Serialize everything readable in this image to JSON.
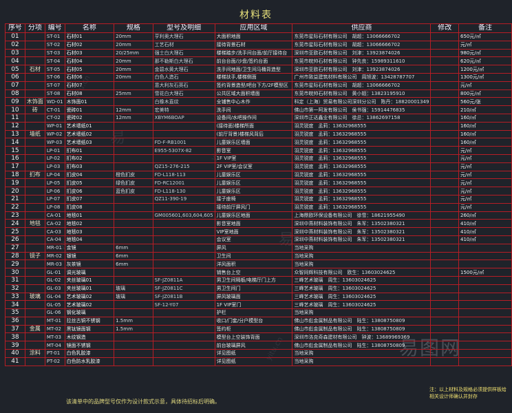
{
  "title": "材料表",
  "headers": [
    "序号",
    "分项",
    "编号",
    "名称",
    "规格",
    "型号及明细",
    "应用区域",
    "供应商",
    "修改",
    "备注"
  ],
  "rows": [
    [
      "01",
      "",
      "ST-01",
      "石材01",
      "20mm",
      "亨利奥大理石",
      "大面积地面",
      "东莞市星际石材有限公司　胡超：13066666702",
      "",
      "650元/㎡"
    ],
    [
      "02",
      "",
      "ST-02",
      "石材02",
      "20mm",
      "工艺石材",
      "接待背景石材",
      "东莞市星际石材有限公司　胡超：13066666702",
      "",
      "元/㎡"
    ],
    [
      "03",
      "",
      "ST-03",
      "石材03",
      "20/25mm",
      "强士白大理石",
      "楼梯踏步/洗手间台面/前厅接待台",
      "深圳市亚欧石材有限公司　刘津：13923874026",
      "",
      "980元/㎡"
    ],
    [
      "04",
      "",
      "ST-04",
      "石材04",
      "20mm",
      "那不勒斯白大理石",
      "前台台面/沙盘/签约台面",
      "东莞市皖帅石材有限公司　钟先良：15989311610",
      "",
      "620元/㎡"
    ],
    [
      "05",
      "石材",
      "ST-05",
      "石材05",
      "20mm",
      "金碧水黄大理石",
      "洗手间地面/卫生间马桶背造型",
      "深圳市亚欧石材有限公司　刘津：13923874026",
      "",
      "1200元/㎡"
    ],
    [
      "06",
      "",
      "ST-06",
      "石材06",
      "20mm",
      "白色人造石",
      "楼梯扶手,楼梯侧面",
      "广州市致益建筑材料有限公司　周旭波：13428787707",
      "",
      "1300元/㎡"
    ],
    [
      "07",
      "",
      "ST-07",
      "石材07",
      "",
      "意大利灰石英石",
      "签约背景造型/吧台下方/2F模型区",
      "东莞市星际石材有限公司　胡超：13066666702",
      "",
      "元/㎡"
    ],
    [
      "08",
      "",
      "ST-08",
      "石材08",
      "25mm",
      "雪花白大理石",
      "公共区域大面积墙面",
      "东莞市皖帅石材有限公司　黄小姐：13823195910",
      "",
      "800元/㎡"
    ],
    [
      "09",
      "木饰面",
      "WD-01",
      "木饰面01",
      "",
      "白橡木直纹",
      "全铺售中心木作",
      "科定（上海）贸易有限公司深圳分公司　陈丹：18820001349",
      "",
      "560元/张"
    ],
    [
      "10",
      "砖",
      "CT-01",
      "瓷砖01",
      "12mm",
      "宏美特",
      "洗手间",
      "佛山市第一阿发有限公司　侯书强：15914476835",
      "",
      "210/㎡"
    ],
    [
      "11",
      "",
      "CT-02",
      "瓷砖02",
      "12mm",
      "XBYM6BOAP",
      "设备间/水吧操作间",
      "深圳市正达鑫业有限公司　徐总：13862697158",
      "",
      "160/㎡"
    ],
    [
      "12",
      "",
      "WP-01",
      "艺术墙纸01",
      "",
      "",
      "(接待面)楼梯所面",
      "羽灵锐度　孟莉：13632968555",
      "",
      "160/㎡"
    ],
    [
      "13",
      "墙纸",
      "WP-02",
      "艺术墙纸02",
      "",
      "",
      "(前厅背景)楼梯风背后",
      "羽灵锐度　孟莉：13632968555",
      "",
      "160/㎡"
    ],
    [
      "14",
      "",
      "WP-03",
      "艺术墙纸03",
      "",
      "FD-F-RB1001",
      "儿童娱乐区墙面",
      "羽灵锐度　孟莉：13632968555",
      "",
      "160/㎡"
    ],
    [
      "15",
      "",
      "LP-01",
      "扪布01",
      "",
      "E955-5307X-82",
      "影音室",
      "羽灵锐度　孟莉：13632968555",
      "",
      "元/㎡"
    ],
    [
      "16",
      "",
      "LP-02",
      "扪布02",
      "",
      "",
      "1F VIP室",
      "羽灵锐度　孟莉：13632968555",
      "",
      "元/㎡"
    ],
    [
      "17",
      "",
      "LP-03",
      "扪布03",
      "",
      "QZ15-276-215",
      "2F VIP室/会议室",
      "羽灵锐度　孟莉：13632968555",
      "",
      "元/㎡"
    ],
    [
      "18",
      "扪布",
      "LP-04",
      "扪皮04",
      "橙色扪皮",
      "FD-L118-113",
      "儿童娱乐区",
      "羽灵锐度　孟莉：13632968555",
      "",
      "元/㎡"
    ],
    [
      "19",
      "",
      "LP-05",
      "扪皮05",
      "绿色扪皮",
      "FD-RC12001",
      "儿童娱乐区",
      "羽灵锐度　孟莉：13632968555",
      "",
      "元/㎡"
    ],
    [
      "20",
      "",
      "LP-06",
      "扪皮06",
      "蓝色扪皮",
      "FD-L118-130",
      "儿童娱乐区",
      "羽灵锐度　孟莉：13632968555",
      "",
      "元/㎡"
    ],
    [
      "21",
      "",
      "LP-07",
      "扪皮07",
      "",
      "QZ11-390-19",
      "接子座椅",
      "羽灵锐度　孟莉：13632968555",
      "",
      "元/㎡"
    ],
    [
      "22",
      "",
      "LP-08",
      "扪皮08",
      "",
      "",
      "接待前厅屏风门",
      "羽灵锐度　孟莉：13632968555",
      "",
      "元/㎡"
    ],
    [
      "23",
      "",
      "CA-01",
      "地毯01",
      "",
      "GM005601,603,604,605",
      "儿童娱乐区地面",
      "上海鼎欧环保设备有限公司　徐雪：18621955490",
      "",
      "260/㎡"
    ],
    [
      "24",
      "地毯",
      "CA-02",
      "地毯02",
      "",
      "",
      "影音室地面",
      "深圳中燕材料装饰有限公司　朱军：13502380321",
      "",
      "410/㎡"
    ],
    [
      "25",
      "",
      "CA-03",
      "地毯03",
      "",
      "",
      "VIP室地面",
      "深圳中燕材料装饰有限公司　朱军：13502380321",
      "",
      "410/㎡"
    ],
    [
      "26",
      "",
      "CA-04",
      "地毯04",
      "",
      "",
      "会议室",
      "深圳中燕材料装饰有限公司　朱军：13502380321",
      "",
      "410/㎡"
    ],
    [
      "27",
      "",
      "MR-01",
      "金镜",
      "6mm",
      "",
      "屏风",
      "当地采购",
      "",
      ""
    ],
    [
      "28",
      "镜子",
      "MR-02",
      "银镜",
      "6mm",
      "",
      "卫生间",
      "当地采购",
      "",
      ""
    ],
    [
      "29",
      "",
      "MR-03",
      "灰茶镜",
      "6mm",
      "",
      "洋风面积",
      "当地采购",
      "",
      ""
    ],
    [
      "30",
      "",
      "GL-01",
      "调光玻璃",
      "",
      "",
      "销售台上空",
      "众智同辉科技有限公司　欧生：13603024625",
      "",
      "1500元/㎡"
    ],
    [
      "31",
      "",
      "GL-02",
      "夹丝玻璃01",
      "",
      "SF-JZ0811A",
      "男卫生间隔板/电梯厅门上方",
      "三峰艺术玻璃　周生：13603024625",
      "",
      ""
    ],
    [
      "32",
      "",
      "GL-03",
      "夹丝玻璃01",
      "玻璃",
      "SF-JZ0811C",
      "男卫生间门",
      "三峰艺术玻璃　周生：13603024625",
      "",
      ""
    ],
    [
      "33",
      "玻璃",
      "GL-04",
      "艺术玻璃02",
      "玻璃",
      "SF-JZ0811B",
      "屏风玻璃面",
      "三峰艺术玻璃　周生：13603024625",
      "",
      ""
    ],
    [
      "34",
      "",
      "GL-05",
      "艺术玻璃02",
      "",
      "SF-12-Y07",
      "1F VIP室门",
      "三峰艺术玻璃　周生：13603024625",
      "",
      ""
    ],
    [
      "35",
      "",
      "GL-06",
      "钢化玻璃",
      "",
      "",
      "护栏",
      "当地采购",
      "",
      ""
    ],
    [
      "36",
      "",
      "MT-01",
      "拉丝古铜不锈钢",
      "1.5mm",
      "",
      "收口/门套/分户模型台",
      "佛山市彪金属制品有限公司　陆生：13808750809",
      "",
      ""
    ],
    [
      "37",
      "金属",
      "MT-02",
      "黑钛镜面钢",
      "1.5mm",
      "",
      "签约柜",
      "佛山市彪金属制品有限公司　陆生：13808750809",
      "",
      ""
    ],
    [
      "38",
      "",
      "MT-03",
      "木纹钢造",
      "",
      "",
      "模型台上空装饰背面",
      "深圳市洛克奇森建材有限公司　钟波：13689969369",
      "",
      ""
    ],
    [
      "39",
      "",
      "MT-04",
      "镜面不锈钢",
      "",
      "",
      "前台玻璃屏风",
      "佛山市彪金属制品有限公司　陆生：13808750809",
      "",
      ""
    ],
    [
      "40",
      "涂料",
      "PT-01",
      "白色乳胶漆",
      "",
      "",
      "详见图纸",
      "当地采购",
      "",
      ""
    ],
    [
      "41",
      "",
      "PT-02",
      "白色防水乳胶漆",
      "",
      "",
      "详见图纸",
      "当地采购",
      "",
      ""
    ]
  ],
  "footer": "该清单中的品牌型号仅作为设计款式示意，具体待招标后明确。",
  "side_note": "注：以上材料及规格必须提供样板给相关设计师确认并封存",
  "watermarks": [
    "易图网",
    "yitu.cn",
    "易"
  ]
}
